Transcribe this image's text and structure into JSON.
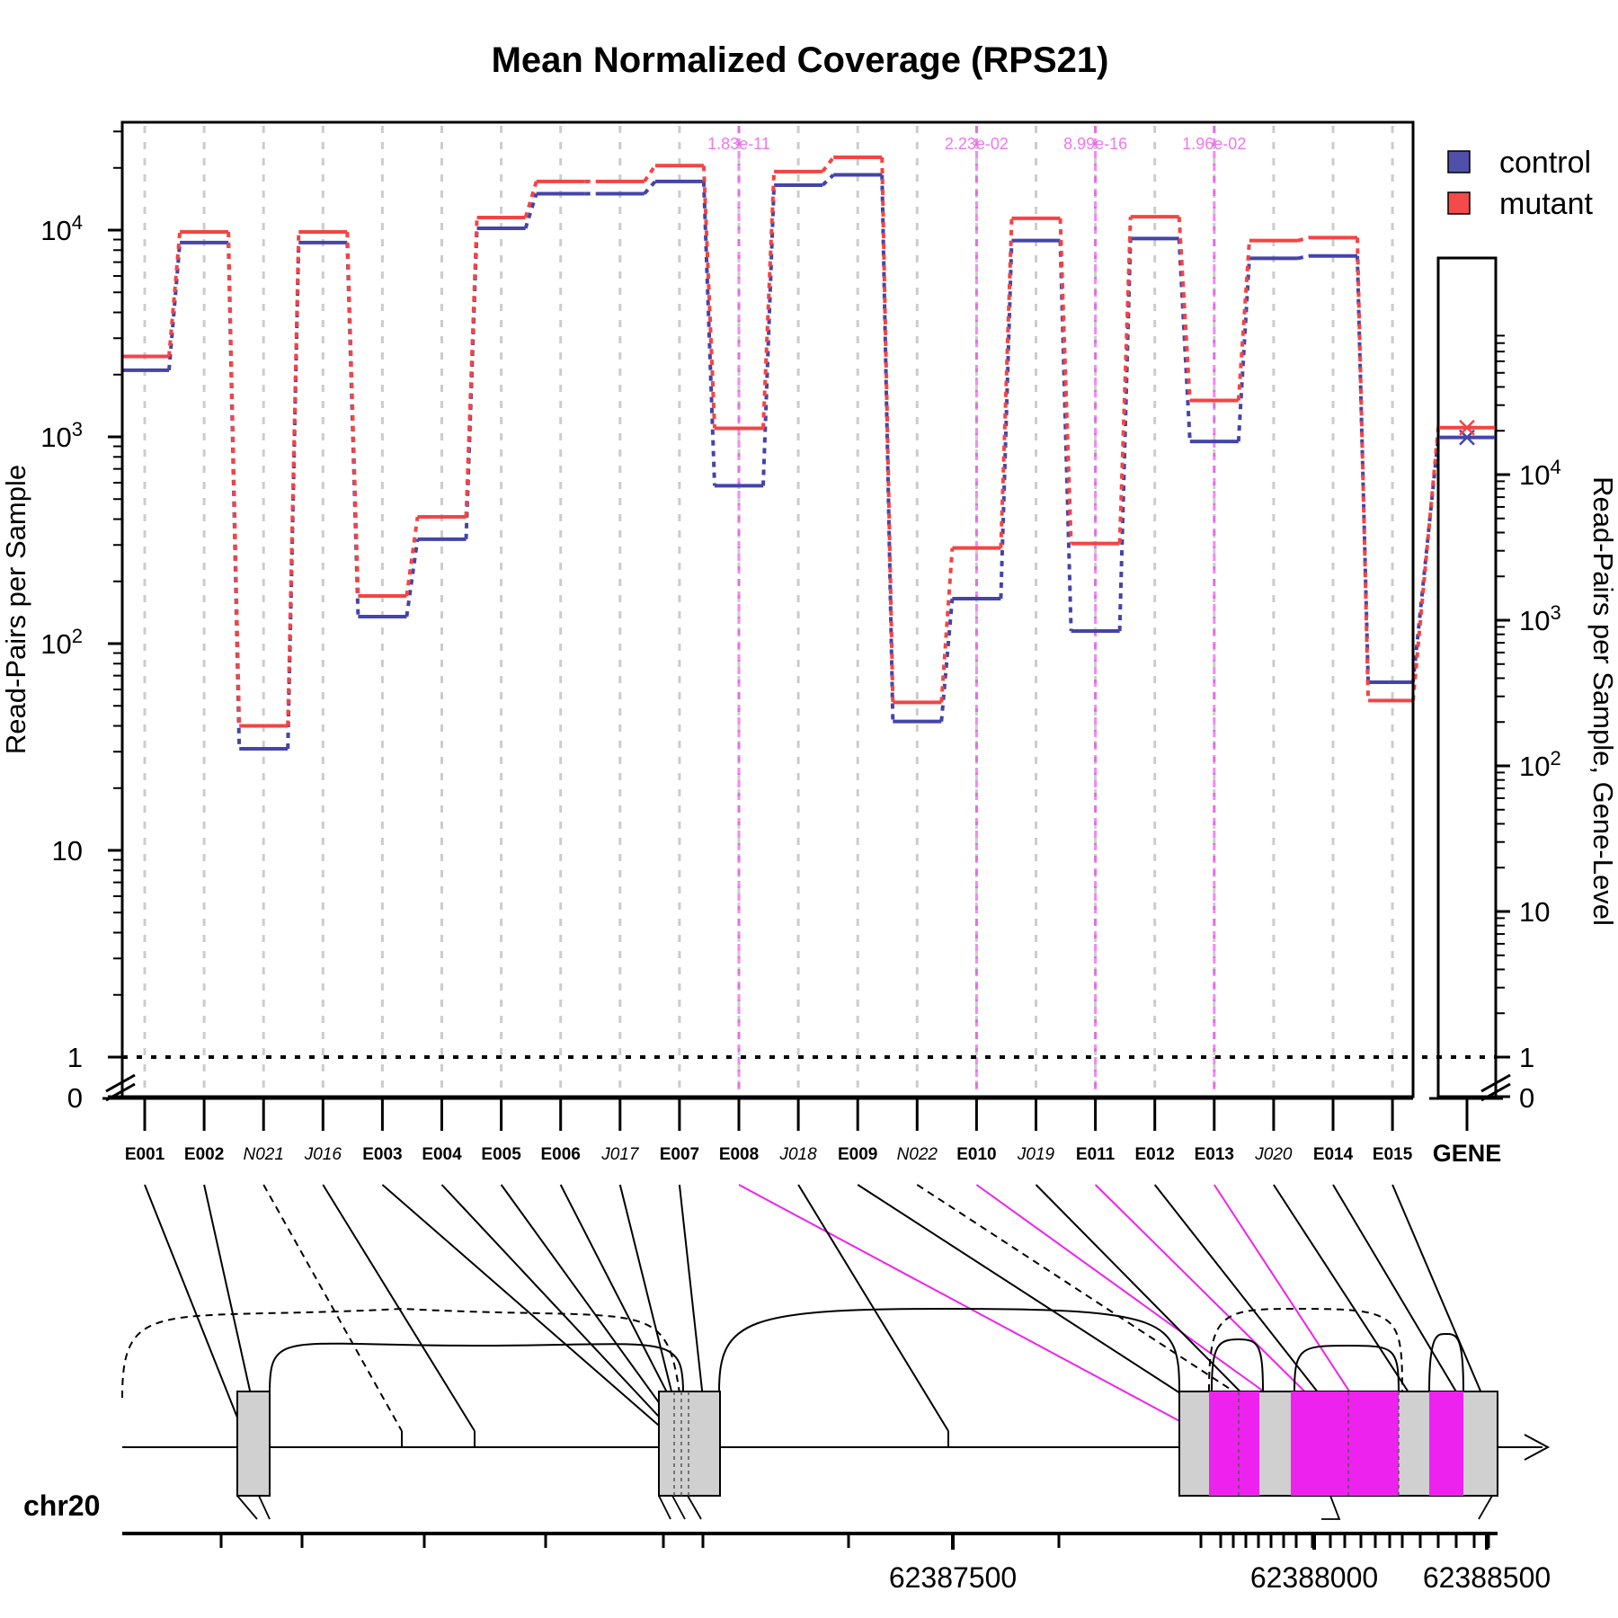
{
  "chart_data": {
    "type": "line",
    "title": "Mean Normalized Coverage (RPS21)",
    "ylabel": "Read-Pairs per Sample",
    "ylabel_right": "Read-Pairs per Sample, Gene-Level",
    "y_scale": "log (zero-break at 0)",
    "ylim": [
      0,
      30000
    ],
    "y_tick_labels": [
      "0",
      "1",
      "10",
      "10^2",
      "10^3",
      "10^4"
    ],
    "right_y_tick_labels": [
      "0",
      "1",
      "10",
      "10^2",
      "10^3",
      "10^4"
    ],
    "grid": "vertical dashed at each feature",
    "legend_position": "top-right",
    "reference_line": {
      "y": 1,
      "style": "dotted"
    },
    "categories": [
      "E001",
      "E002",
      "N021",
      "J016",
      "E003",
      "E004",
      "E005",
      "E006",
      "J017",
      "E007",
      "E008",
      "J018",
      "E009",
      "N022",
      "E010",
      "J019",
      "E011",
      "E012",
      "E013",
      "J020",
      "E014",
      "E015"
    ],
    "category_style": [
      "bold",
      "bold",
      "italic",
      "italic",
      "bold",
      "bold",
      "bold",
      "bold",
      "italic",
      "bold",
      "bold",
      "italic",
      "bold",
      "italic",
      "bold",
      "italic",
      "bold",
      "bold",
      "bold",
      "italic",
      "bold",
      "bold"
    ],
    "series": [
      {
        "name": "control",
        "color": "#4444aa",
        "values": [
          2100,
          8700,
          31,
          8700,
          135,
          320,
          10200,
          15000,
          15000,
          17200,
          580,
          16500,
          18500,
          42,
          165,
          8900,
          115,
          9100,
          950,
          7300,
          7500,
          65
        ]
      },
      {
        "name": "mutant",
        "color": "#f44444",
        "values": [
          2450,
          9800,
          40,
          9800,
          170,
          410,
          11500,
          17200,
          17200,
          20500,
          1100,
          19200,
          22500,
          52,
          290,
          11400,
          305,
          11600,
          1500,
          8900,
          9200,
          53
        ]
      }
    ],
    "significant": [
      {
        "feature": "E008",
        "pvalue": "1.83e-11"
      },
      {
        "feature": "E010",
        "pvalue": "2.23e-02"
      },
      {
        "feature": "E011",
        "pvalue": "8.99e-16"
      },
      {
        "feature": "E013",
        "pvalue": "1.96e-02"
      }
    ],
    "gene_panel": {
      "label": "GENE",
      "control": 18000,
      "mutant": 21000
    },
    "highlight_color": "#ee22ee",
    "genome": {
      "chromosome": "chr20",
      "tick_labels": [
        "62387500",
        "62388000",
        "62388500"
      ]
    }
  }
}
